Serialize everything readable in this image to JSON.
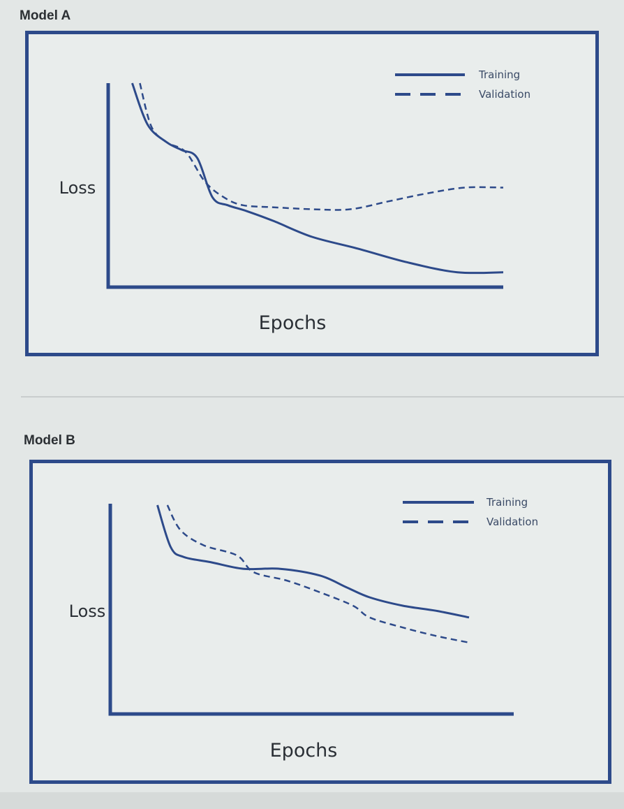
{
  "titles": [
    "Model A",
    "Model B"
  ],
  "colors": {
    "line": "#2d4a8a",
    "frame": "#2d4a8a"
  },
  "chart_data": [
    {
      "type": "line",
      "title": "Model A",
      "xlabel": "Epochs",
      "ylabel": "Loss",
      "legend_position": "top-right",
      "xlim": [
        0,
        100
      ],
      "ylim": [
        0,
        100
      ],
      "series": [
        {
          "name": "Training",
          "style": "solid",
          "x": [
            3,
            7,
            12,
            16,
            20,
            24,
            28,
            33,
            40,
            50,
            62,
            75,
            88,
            100
          ],
          "y": [
            100,
            79,
            70,
            66,
            62,
            42,
            38,
            35,
            30,
            22,
            16,
            9,
            4,
            4
          ]
        },
        {
          "name": "Validation",
          "style": "dashed",
          "x": [
            5,
            8,
            12,
            17,
            22,
            27,
            32,
            40,
            50,
            60,
            70,
            80,
            90,
            100
          ],
          "y": [
            100,
            78,
            70,
            65,
            50,
            42,
            38,
            37,
            36,
            36,
            40,
            44,
            47,
            47
          ]
        }
      ]
    },
    {
      "type": "line",
      "title": "Model B",
      "xlabel": "Epochs",
      "ylabel": "Loss",
      "legend_position": "top-right",
      "xlim": [
        0,
        100
      ],
      "ylim": [
        0,
        100
      ],
      "series": [
        {
          "name": "Training",
          "style": "solid",
          "x": [
            6,
            10,
            14,
            22,
            32,
            43,
            55,
            63,
            70,
            80,
            90,
            100
          ],
          "y": [
            100,
            75,
            69,
            66,
            62,
            62,
            58,
            51,
            45,
            40,
            37,
            33
          ]
        },
        {
          "name": "Validation",
          "style": "dashed",
          "x": [
            9,
            13,
            20,
            30,
            35,
            45,
            55,
            65,
            70,
            80,
            90,
            100
          ],
          "y": [
            100,
            85,
            76,
            70,
            60,
            55,
            48,
            40,
            33,
            27,
            22,
            18
          ]
        }
      ]
    }
  ]
}
